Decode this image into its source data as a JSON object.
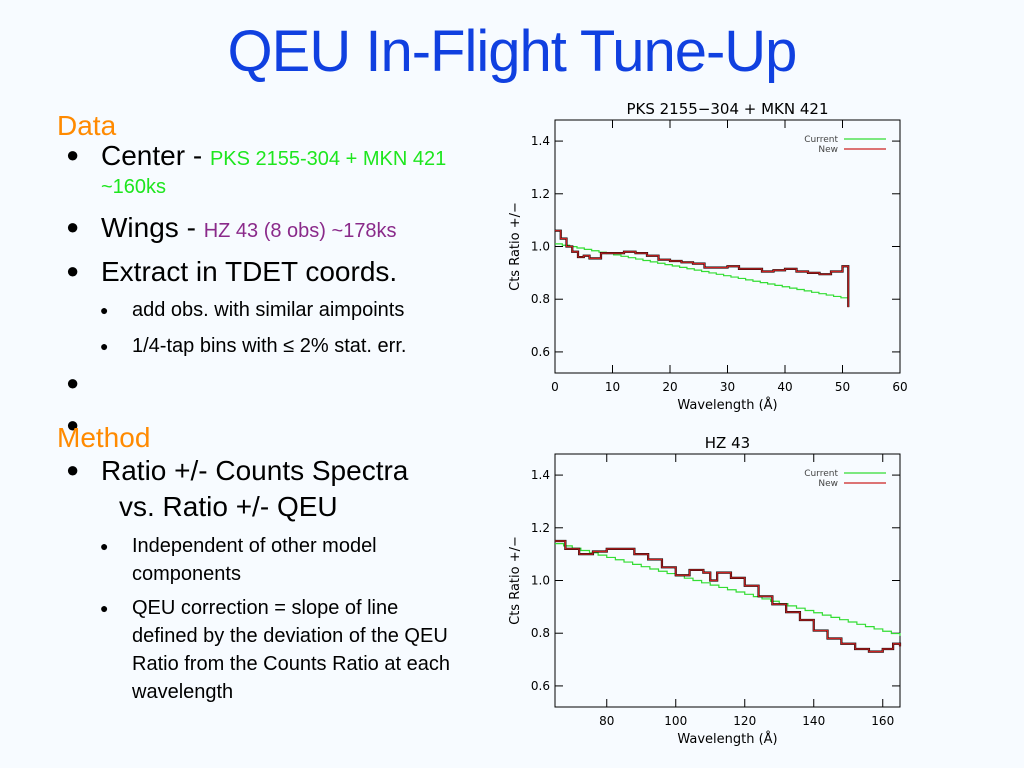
{
  "title": "QEU In-Flight Tune-Up",
  "data_section": {
    "heading": "Data",
    "center_label": "Center - ",
    "center_target": "PKS 2155-304 + MKN 421",
    "center_time": "~160ks",
    "wings_label": "Wings - ",
    "wings_target": "HZ 43  (8 obs) ~178ks",
    "extract": "Extract in TDET coords.",
    "sub1": "add obs. with similar aimpoints",
    "sub2": "1/4-tap bins with ≤ 2% stat. err."
  },
  "method_section": {
    "heading": "Method",
    "item1_line1": "Ratio +/- Counts Spectra",
    "item1_line2": "vs. Ratio +/- QEU",
    "sub1_line1": "Independent of other model",
    "sub1_line2": "components",
    "sub2_line1": "QEU correction = slope of line",
    "sub2_line2": "defined by the deviation of the QEU",
    "sub2_line3": "Ratio from the Counts Ratio at each",
    "sub2_line4": "wavelength"
  },
  "colors": {
    "title": "#1040e0",
    "heading": "#ff8a00",
    "current": "#33dd33",
    "new": "#cc2222"
  },
  "chart_data": [
    {
      "type": "line",
      "title": "PKS 2155−304 + MKN 421",
      "xlabel": "Wavelength (Å)",
      "ylabel": "Cts Ratio +/−",
      "xlim": [
        0,
        60
      ],
      "ylim": [
        0.52,
        1.48
      ],
      "xticks": [
        0,
        10,
        20,
        30,
        40,
        50,
        60
      ],
      "yticks": [
        0.6,
        0.8,
        1.0,
        1.2,
        1.4
      ],
      "legend_position": "top-right",
      "series": [
        {
          "name": "Current",
          "x": [
            0,
            51
          ],
          "y": [
            1.01,
            0.8
          ]
        },
        {
          "name": "New",
          "x": [
            0,
            1,
            2,
            3,
            4,
            5,
            6,
            8,
            10,
            12,
            14,
            16,
            18,
            20,
            22,
            24,
            26,
            28,
            30,
            32,
            34,
            36,
            38,
            40,
            42,
            44,
            46,
            48,
            50,
            51
          ],
          "y": [
            1.06,
            1.03,
            1.0,
            0.98,
            0.96,
            0.965,
            0.955,
            0.975,
            0.975,
            0.98,
            0.975,
            0.965,
            0.95,
            0.945,
            0.94,
            0.935,
            0.92,
            0.92,
            0.925,
            0.915,
            0.915,
            0.905,
            0.91,
            0.915,
            0.905,
            0.9,
            0.895,
            0.905,
            0.925,
            0.77
          ]
        }
      ]
    },
    {
      "type": "line",
      "title": "HZ 43",
      "xlabel": "Wavelength (Å)",
      "ylabel": "Cts Ratio +/−",
      "xlim": [
        65,
        165
      ],
      "ylim": [
        0.52,
        1.48
      ],
      "xticks": [
        80,
        100,
        120,
        140,
        160
      ],
      "yticks": [
        0.6,
        0.8,
        1.0,
        1.2,
        1.4
      ],
      "legend_position": "top-right",
      "series": [
        {
          "name": "Current",
          "x": [
            65,
            165
          ],
          "y": [
            1.14,
            0.79
          ]
        },
        {
          "name": "New",
          "x": [
            65,
            68,
            72,
            76,
            80,
            84,
            88,
            92,
            96,
            100,
            104,
            108,
            110,
            112,
            116,
            120,
            124,
            128,
            132,
            136,
            140,
            144,
            148,
            152,
            156,
            160,
            163,
            165
          ],
          "y": [
            1.15,
            1.12,
            1.1,
            1.11,
            1.12,
            1.12,
            1.1,
            1.08,
            1.05,
            1.02,
            1.04,
            1.03,
            1.0,
            1.03,
            1.01,
            0.98,
            0.94,
            0.91,
            0.88,
            0.85,
            0.81,
            0.78,
            0.76,
            0.74,
            0.73,
            0.74,
            0.76,
            0.75
          ]
        }
      ]
    }
  ]
}
